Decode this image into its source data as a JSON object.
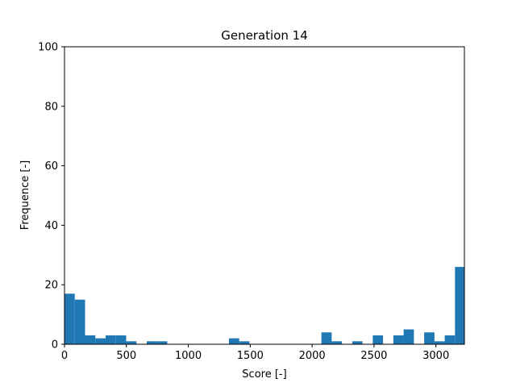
{
  "chart_data": {
    "type": "bar",
    "title": "Generation 14",
    "xlabel": "Score [-]",
    "ylabel": "Frequence [-]",
    "xlim": [
      0,
      3230
    ],
    "ylim": [
      0,
      100
    ],
    "xticks": [
      0,
      500,
      1000,
      1500,
      2000,
      2500,
      3000
    ],
    "yticks": [
      0,
      20,
      40,
      60,
      80,
      100
    ],
    "bar_color": "#1f77b4",
    "bin_width": 83,
    "bins": [
      {
        "start": 0,
        "value": 17
      },
      {
        "start": 83,
        "value": 15
      },
      {
        "start": 166,
        "value": 3
      },
      {
        "start": 249,
        "value": 2
      },
      {
        "start": 332,
        "value": 3
      },
      {
        "start": 415,
        "value": 3
      },
      {
        "start": 498,
        "value": 1
      },
      {
        "start": 664,
        "value": 1
      },
      {
        "start": 747,
        "value": 1
      },
      {
        "start": 1328,
        "value": 2
      },
      {
        "start": 1411,
        "value": 1
      },
      {
        "start": 2075,
        "value": 4
      },
      {
        "start": 2158,
        "value": 1
      },
      {
        "start": 2324,
        "value": 1
      },
      {
        "start": 2490,
        "value": 3
      },
      {
        "start": 2656,
        "value": 3
      },
      {
        "start": 2739,
        "value": 5
      },
      {
        "start": 2905,
        "value": 4
      },
      {
        "start": 2988,
        "value": 1
      },
      {
        "start": 3071,
        "value": 3
      },
      {
        "start": 3154,
        "value": 26
      }
    ]
  }
}
